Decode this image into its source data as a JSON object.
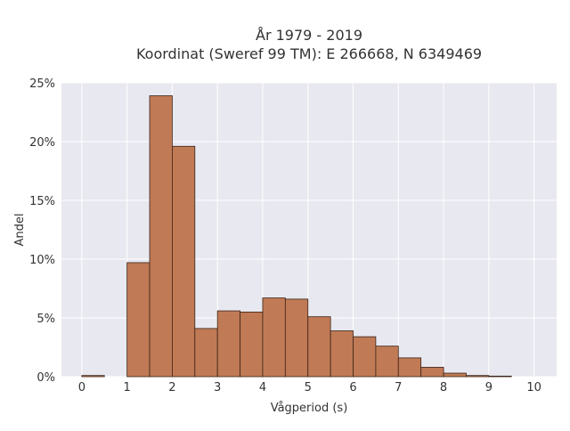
{
  "chart_data": {
    "type": "bar",
    "title_line1": "År 1979 - 2019",
    "title_line2": "Koordinat (Sweref 99 TM): E 266668, N 6349469",
    "xlabel": "Vågperiod (s)",
    "ylabel": "Andel",
    "xlim": [
      -0.45,
      10.5
    ],
    "ylim": [
      0,
      25
    ],
    "x_ticks": [
      "0",
      "1",
      "2",
      "3",
      "4",
      "5",
      "6",
      "7",
      "8",
      "9",
      "10"
    ],
    "y_ticks": [
      "0%",
      "5%",
      "10%",
      "15%",
      "20%",
      "25%"
    ],
    "bin_width": 0.5,
    "bins": [
      {
        "start": 0.0,
        "value": 0.1
      },
      {
        "start": 1.0,
        "value": 9.7
      },
      {
        "start": 1.5,
        "value": 23.9
      },
      {
        "start": 2.0,
        "value": 19.6
      },
      {
        "start": 2.5,
        "value": 4.1
      },
      {
        "start": 3.0,
        "value": 5.6
      },
      {
        "start": 3.5,
        "value": 5.5
      },
      {
        "start": 4.0,
        "value": 6.7
      },
      {
        "start": 4.5,
        "value": 6.6
      },
      {
        "start": 5.0,
        "value": 5.1
      },
      {
        "start": 5.5,
        "value": 3.9
      },
      {
        "start": 6.0,
        "value": 3.4
      },
      {
        "start": 6.5,
        "value": 2.6
      },
      {
        "start": 7.0,
        "value": 1.6
      },
      {
        "start": 7.5,
        "value": 0.8
      },
      {
        "start": 8.0,
        "value": 0.3
      },
      {
        "start": 8.5,
        "value": 0.1
      },
      {
        "start": 9.0,
        "value": 0.05
      }
    ],
    "grid": true,
    "bar_color": "#c07a55",
    "bar_edge_color": "#3a2418",
    "plot_background": "#e8e8f0",
    "grid_color": "#ffffff"
  }
}
